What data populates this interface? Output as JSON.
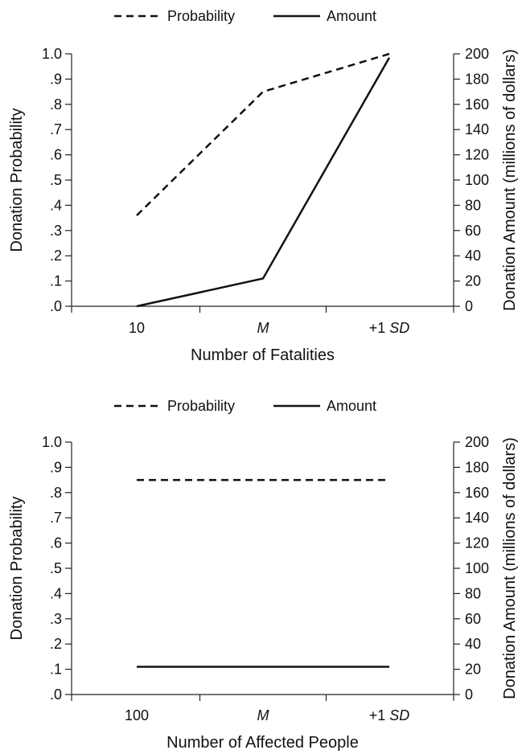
{
  "legend": {
    "probability_label": "Probability",
    "amount_label": "Amount"
  },
  "chart_data": [
    {
      "type": "line",
      "xlabel": "Number of Fatalities",
      "ylabel_left": "Donation Probability",
      "ylabel_right": "Donation Amount (millions of dollars)",
      "categories": [
        "10",
        "M",
        "+1 SD"
      ],
      "category_italic": [
        false,
        true,
        "SD"
      ],
      "ylim_left": [
        0,
        1
      ],
      "ylim_right": [
        0,
        200
      ],
      "yticks_left": [
        ".0",
        ".1",
        ".2",
        ".3",
        ".4",
        ".5",
        ".6",
        ".7",
        ".8",
        ".9",
        "1.0"
      ],
      "yticks_right": [
        "0",
        "20",
        "40",
        "60",
        "80",
        "100",
        "120",
        "140",
        "160",
        "180",
        "200"
      ],
      "series": [
        {
          "name": "Probability",
          "axis": "left",
          "style": "dashed",
          "values": [
            0.36,
            0.85,
            1.0
          ]
        },
        {
          "name": "Amount",
          "axis": "right",
          "style": "solid",
          "values": [
            0,
            22,
            197
          ]
        }
      ],
      "legend_position": "top"
    },
    {
      "type": "line",
      "xlabel": "Number of Affected People",
      "ylabel_left": "Donation Probability",
      "ylabel_right": "Donation Amount (millions of dollars)",
      "categories": [
        "100",
        "M",
        "+1 SD"
      ],
      "category_italic": [
        false,
        true,
        "SD"
      ],
      "ylim_left": [
        0,
        1
      ],
      "ylim_right": [
        0,
        200
      ],
      "yticks_left": [
        ".0",
        ".1",
        ".2",
        ".3",
        ".4",
        ".5",
        ".6",
        ".7",
        ".8",
        ".9",
        "1.0"
      ],
      "yticks_right": [
        "0",
        "20",
        "40",
        "60",
        "80",
        "100",
        "120",
        "140",
        "160",
        "180",
        "200"
      ],
      "series": [
        {
          "name": "Probability",
          "axis": "left",
          "style": "dashed",
          "values": [
            0.85,
            0.85,
            0.85
          ]
        },
        {
          "name": "Amount",
          "axis": "right",
          "style": "solid",
          "values": [
            22,
            22,
            22
          ]
        }
      ],
      "legend_position": "top"
    }
  ]
}
